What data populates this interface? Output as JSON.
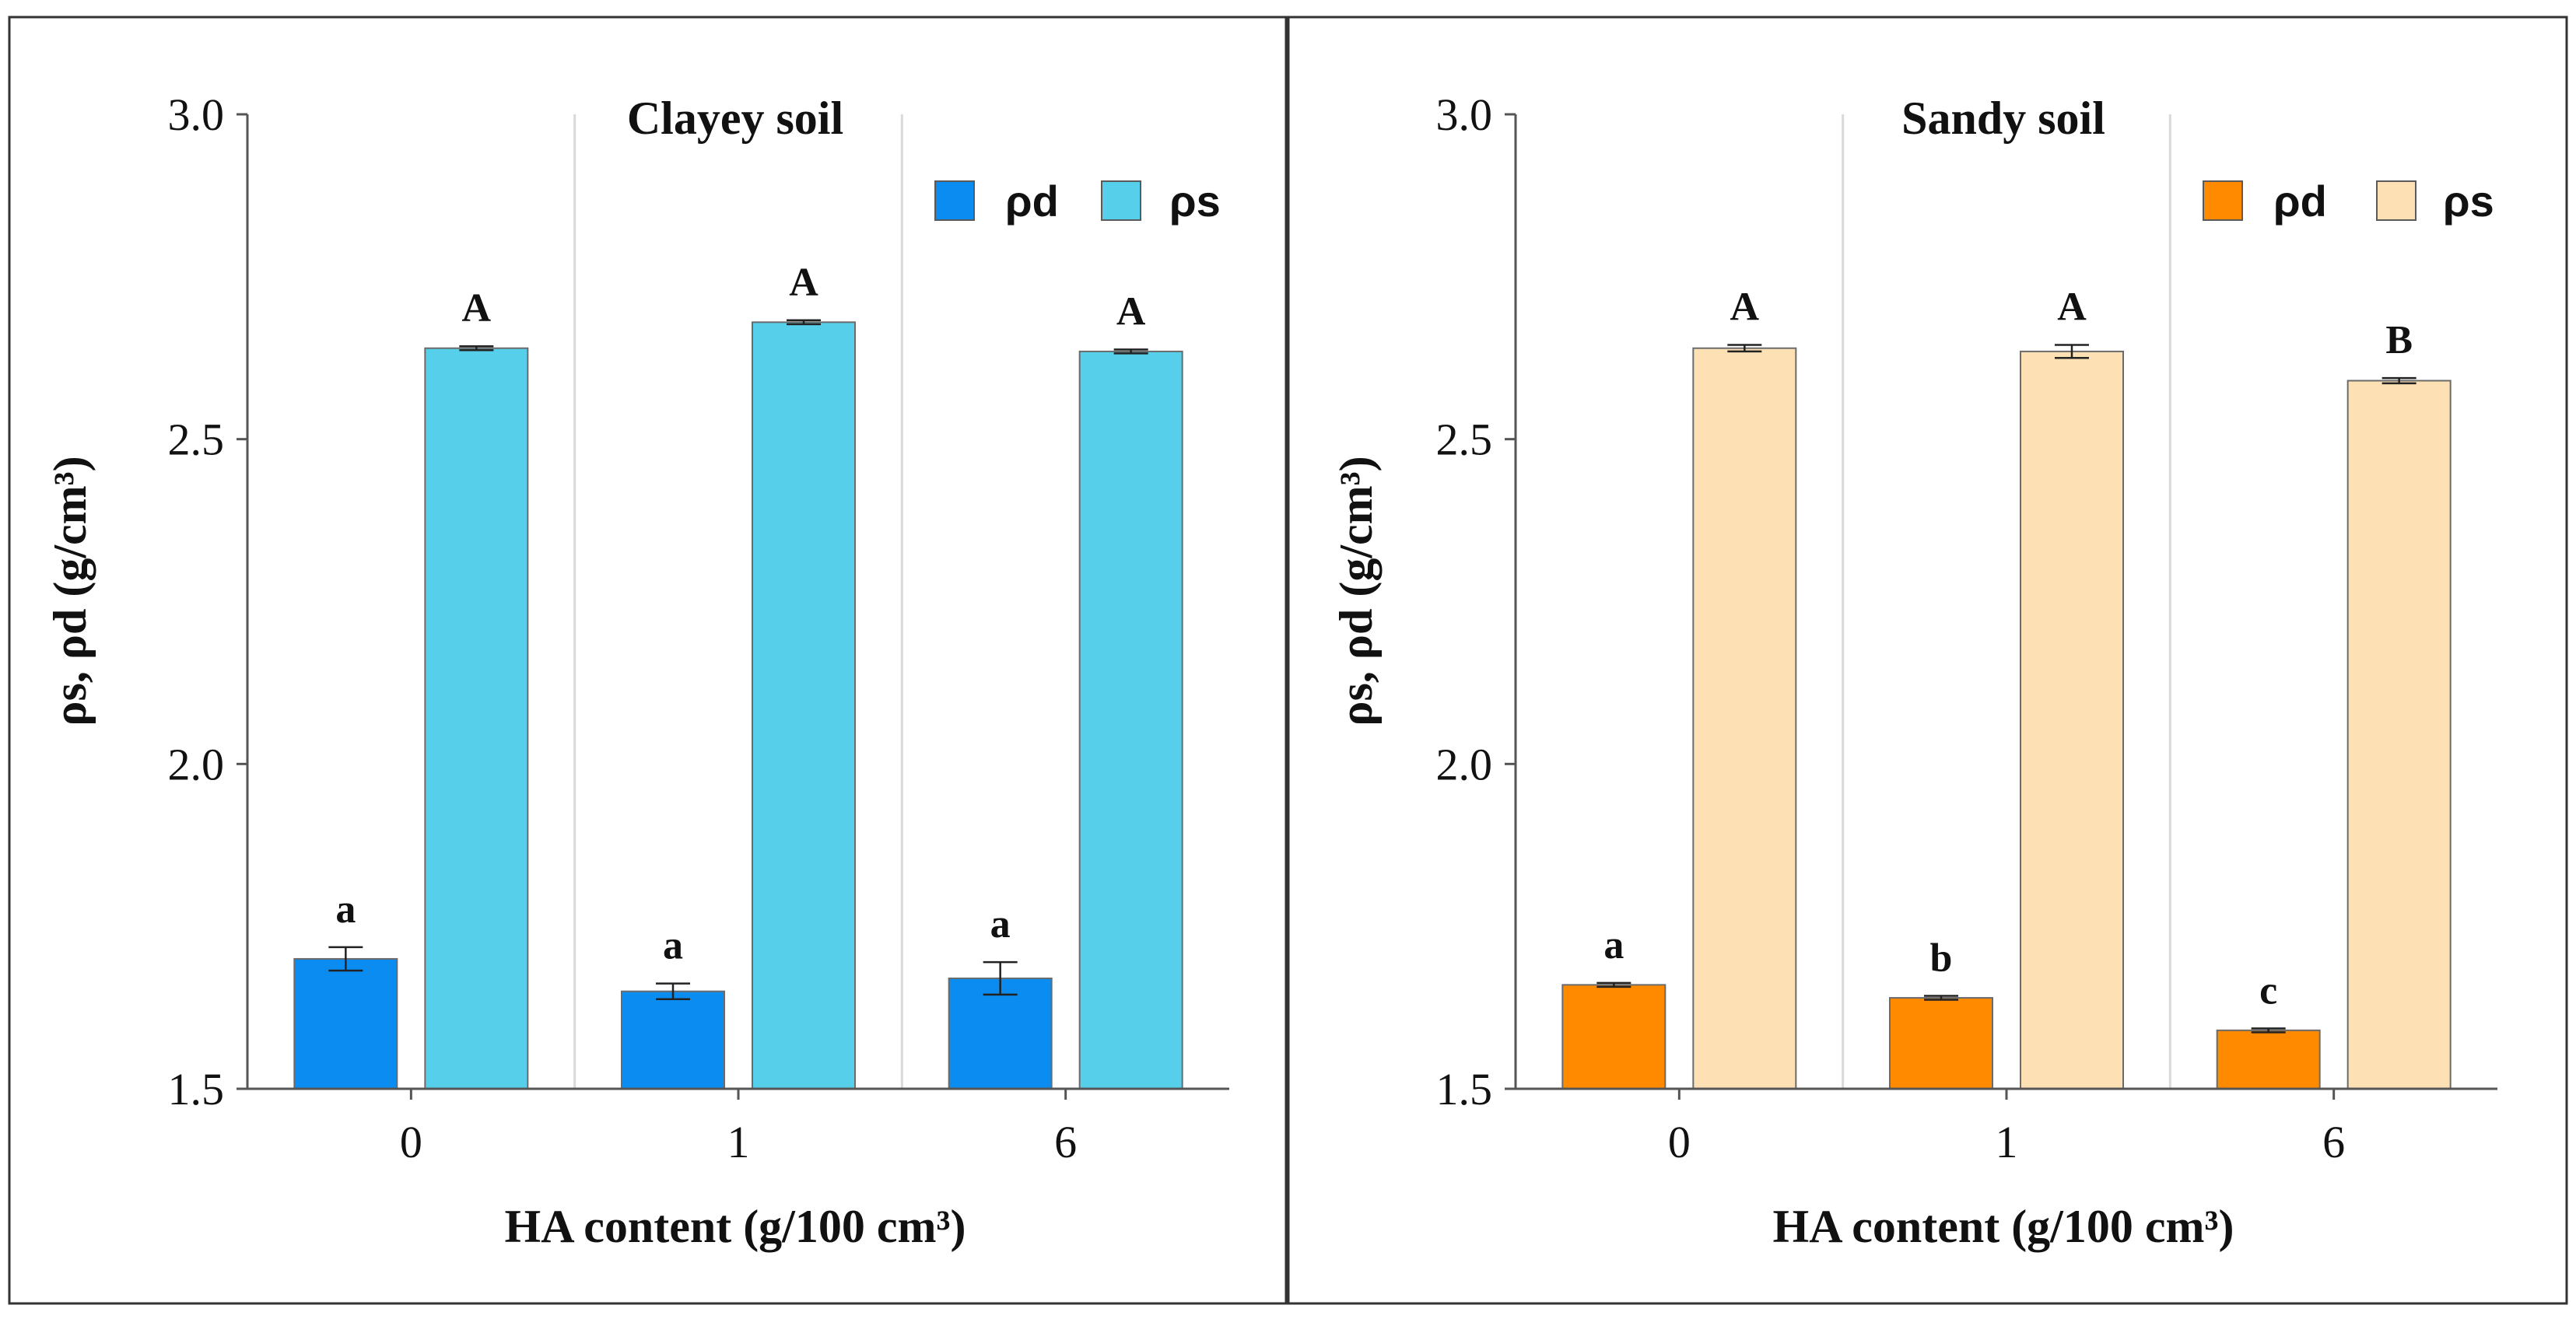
{
  "chart_data": [
    {
      "type": "bar",
      "title": "Clayey soil",
      "xlabel": "HA content (g/100 cm³)",
      "ylabel": "ρs, ρd (g/cm³)",
      "ylim": [
        1.5,
        3.0
      ],
      "yticks": [
        "1.5",
        "2.0",
        "2.5",
        "3.0"
      ],
      "grid": false,
      "legend_position": "top-right",
      "categories": [
        "0",
        "1",
        "6"
      ],
      "series": [
        {
          "name": "ρd",
          "color": "#0a8cf0",
          "values": [
            1.7,
            1.65,
            1.67
          ],
          "errors": [
            0.018,
            0.012,
            0.025
          ],
          "letters": [
            "a",
            "a",
            "a"
          ]
        },
        {
          "name": "ρs",
          "color": "#55cfea",
          "values": [
            2.64,
            2.68,
            2.635
          ],
          "errors": [
            0.003,
            0.003,
            0.003
          ],
          "letters": [
            "A",
            "A",
            "A"
          ]
        }
      ]
    },
    {
      "type": "bar",
      "title": "Sandy soil",
      "xlabel": "HA content (g/100 cm³)",
      "ylabel": "ρs, ρd (g/cm³)",
      "ylim": [
        1.5,
        3.0
      ],
      "yticks": [
        "1.5",
        "2.0",
        "2.5",
        "3.0"
      ],
      "grid": false,
      "legend_position": "top-right",
      "categories": [
        "0",
        "1",
        "6"
      ],
      "series": [
        {
          "name": "ρd",
          "color": "#ff8a00",
          "values": [
            1.66,
            1.64,
            1.59
          ],
          "errors": [
            0.003,
            0.003,
            0.003
          ],
          "letters": [
            "a",
            "b",
            "c"
          ]
        },
        {
          "name": "ρs",
          "color": "#fde0b3",
          "values": [
            2.64,
            2.635,
            2.59
          ],
          "errors": [
            0.005,
            0.01,
            0.004
          ],
          "letters": [
            "A",
            "A",
            "B"
          ]
        }
      ]
    }
  ]
}
